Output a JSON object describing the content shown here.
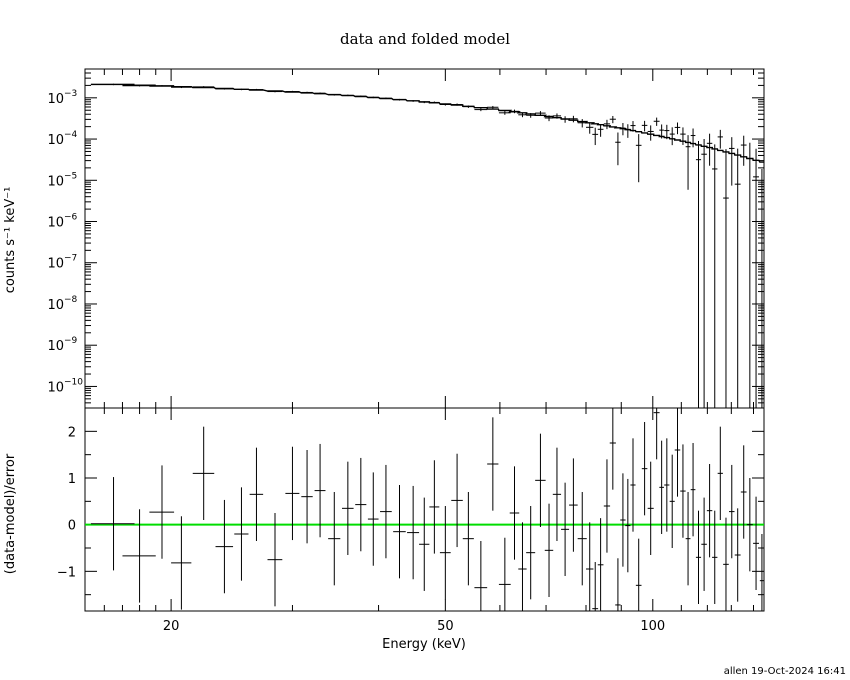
{
  "chart_data": [
    {
      "type": "line",
      "title": "data and folded model",
      "ylabel": "counts s⁻¹ keV⁻¹",
      "xlabel": "",
      "xscale": "log",
      "yscale": "log",
      "xlim": [
        15,
        145
      ],
      "ylim": [
        3e-11,
        0.005
      ],
      "yticks": [
        {
          "value": 1e-10,
          "base": "10",
          "exp": "−10"
        },
        {
          "value": 1e-09,
          "base": "10",
          "exp": "−9"
        },
        {
          "value": 1e-08,
          "base": "10",
          "exp": "−8"
        },
        {
          "value": 1e-07,
          "base": "10",
          "exp": "−7"
        },
        {
          "value": 1e-06,
          "base": "10",
          "exp": "−6"
        },
        {
          "value": 1e-05,
          "base": "10",
          "exp": "−5"
        },
        {
          "value": 0.0001,
          "base": "10",
          "exp": "−4"
        },
        {
          "value": 0.001,
          "base": "10",
          "exp": "−3"
        }
      ],
      "model_color": "#000000",
      "data_color": "#000000"
    },
    {
      "type": "scatter",
      "ylabel": "(data-model)/error",
      "xlabel": "Energy (keV)",
      "xscale": "log",
      "xlim": [
        15,
        145
      ],
      "ylim": [
        -1.85,
        2.5
      ],
      "xticks": [
        {
          "value": 20,
          "label": "20"
        },
        {
          "value": 50,
          "label": "50"
        },
        {
          "value": 100,
          "label": "100"
        }
      ],
      "yticks": [
        {
          "value": 2,
          "label": "2"
        },
        {
          "value": 1,
          "label": "1"
        },
        {
          "value": 0,
          "label": "0"
        },
        {
          "value": -1,
          "label": "−1"
        }
      ],
      "zero_line_color": "#00dd00",
      "residuals": [
        {
          "x": 16.5,
          "xerr": 1.2,
          "y": 0.02,
          "yerr": 1.0
        },
        {
          "x": 18.0,
          "xerr": 1.0,
          "y": -0.67,
          "yerr": 1.0
        },
        {
          "x": 19.4,
          "xerr": 0.8,
          "y": 0.27,
          "yerr": 1.0
        },
        {
          "x": 20.7,
          "xerr": 0.7,
          "y": -0.82,
          "yerr": 1.0
        },
        {
          "x": 22.3,
          "xerr": 0.8,
          "y": 1.1,
          "yerr": 1.0
        },
        {
          "x": 23.9,
          "xerr": 0.7,
          "y": -0.47,
          "yerr": 1.0
        },
        {
          "x": 25.3,
          "xerr": 0.6,
          "y": -0.2,
          "yerr": 1.0
        },
        {
          "x": 26.6,
          "xerr": 0.6,
          "y": 0.65,
          "yerr": 1.0
        },
        {
          "x": 28.3,
          "xerr": 0.7,
          "y": -0.75,
          "yerr": 1.0
        },
        {
          "x": 30.0,
          "xerr": 0.7,
          "y": 0.67,
          "yerr": 1.0
        },
        {
          "x": 31.5,
          "xerr": 0.6,
          "y": 0.6,
          "yerr": 1.0
        },
        {
          "x": 32.9,
          "xerr": 0.6,
          "y": 0.73,
          "yerr": 1.0
        },
        {
          "x": 34.5,
          "xerr": 0.7,
          "y": -0.3,
          "yerr": 1.0
        },
        {
          "x": 36.1,
          "xerr": 0.7,
          "y": 0.35,
          "yerr": 1.0
        },
        {
          "x": 37.7,
          "xerr": 0.7,
          "y": 0.43,
          "yerr": 1.0
        },
        {
          "x": 39.3,
          "xerr": 0.7,
          "y": 0.12,
          "yerr": 1.0
        },
        {
          "x": 41.0,
          "xerr": 0.8,
          "y": 0.28,
          "yerr": 1.0
        },
        {
          "x": 42.9,
          "xerr": 0.9,
          "y": -0.15,
          "yerr": 1.0
        },
        {
          "x": 44.9,
          "xerr": 0.9,
          "y": -0.17,
          "yerr": 1.0
        },
        {
          "x": 46.6,
          "xerr": 0.8,
          "y": -0.42,
          "yerr": 1.0
        },
        {
          "x": 48.2,
          "xerr": 0.8,
          "y": 0.38,
          "yerr": 1.0
        },
        {
          "x": 50.0,
          "xerr": 0.9,
          "y": -0.6,
          "yerr": 1.0
        },
        {
          "x": 52.0,
          "xerr": 1.0,
          "y": 0.52,
          "yerr": 1.0
        },
        {
          "x": 54.0,
          "xerr": 1.0,
          "y": -0.3,
          "yerr": 1.0
        },
        {
          "x": 56.3,
          "xerr": 1.2,
          "y": -1.35,
          "yerr": 1.0
        },
        {
          "x": 58.6,
          "xerr": 1.1,
          "y": 1.3,
          "yerr": 1.0
        },
        {
          "x": 61.0,
          "xerr": 1.2,
          "y": -1.28,
          "yerr": 1.0
        },
        {
          "x": 63.0,
          "xerr": 1.0,
          "y": 0.25,
          "yerr": 1.0
        },
        {
          "x": 64.7,
          "xerr": 0.9,
          "y": -0.95,
          "yerr": 1.0
        },
        {
          "x": 66.5,
          "xerr": 1.0,
          "y": -0.6,
          "yerr": 1.0
        },
        {
          "x": 68.7,
          "xerr": 1.2,
          "y": 0.95,
          "yerr": 1.0
        },
        {
          "x": 70.7,
          "xerr": 1.0,
          "y": -0.55,
          "yerr": 1.0
        },
        {
          "x": 72.6,
          "xerr": 1.0,
          "y": 0.65,
          "yerr": 1.0
        },
        {
          "x": 74.6,
          "xerr": 1.0,
          "y": -0.1,
          "yerr": 1.0
        },
        {
          "x": 76.7,
          "xerr": 1.1,
          "y": 0.42,
          "yerr": 1.0
        },
        {
          "x": 79.0,
          "xerr": 1.2,
          "y": -0.3,
          "yerr": 1.0
        },
        {
          "x": 81.0,
          "xerr": 1.0,
          "y": -0.95,
          "yerr": 1.0
        },
        {
          "x": 82.5,
          "xerr": 0.8,
          "y": -1.8,
          "yerr": 1.0
        },
        {
          "x": 84.0,
          "xerr": 0.8,
          "y": -0.86,
          "yerr": 1.0
        },
        {
          "x": 85.8,
          "xerr": 0.9,
          "y": 0.4,
          "yerr": 1.0
        },
        {
          "x": 87.5,
          "xerr": 0.9,
          "y": 1.75,
          "yerr": 1.0
        },
        {
          "x": 89.0,
          "xerr": 0.8,
          "y": -1.72,
          "yerr": 1.0
        },
        {
          "x": 90.5,
          "xerr": 0.8,
          "y": 0.1,
          "yerr": 1.0
        },
        {
          "x": 92.0,
          "xerr": 0.8,
          "y": -0.02,
          "yerr": 1.0
        },
        {
          "x": 93.6,
          "xerr": 0.8,
          "y": 0.85,
          "yerr": 1.0
        },
        {
          "x": 95.4,
          "xerr": 0.9,
          "y": -1.3,
          "yerr": 1.0
        },
        {
          "x": 97.3,
          "xerr": 0.9,
          "y": 1.2,
          "yerr": 1.0
        },
        {
          "x": 99.3,
          "xerr": 1.0,
          "y": 0.35,
          "yerr": 1.0
        },
        {
          "x": 101.3,
          "xerr": 1.0,
          "y": 2.4,
          "yerr": 1.0
        },
        {
          "x": 103.0,
          "xerr": 0.8,
          "y": 0.8,
          "yerr": 1.0
        },
        {
          "x": 104.8,
          "xerr": 0.9,
          "y": 0.85,
          "yerr": 1.0
        },
        {
          "x": 106.7,
          "xerr": 0.9,
          "y": 0.5,
          "yerr": 1.0
        },
        {
          "x": 108.6,
          "xerr": 1.0,
          "y": 1.6,
          "yerr": 1.0
        },
        {
          "x": 110.6,
          "xerr": 1.0,
          "y": 0.72,
          "yerr": 1.0
        },
        {
          "x": 112.5,
          "xerr": 0.9,
          "y": -0.3,
          "yerr": 1.0
        },
        {
          "x": 114.4,
          "xerr": 0.9,
          "y": 0.75,
          "yerr": 1.0
        },
        {
          "x": 116.5,
          "xerr": 1.0,
          "y": -0.7,
          "yerr": 1.0
        },
        {
          "x": 118.7,
          "xerr": 1.1,
          "y": -0.42,
          "yerr": 1.0
        },
        {
          "x": 120.9,
          "xerr": 1.1,
          "y": 0.3,
          "yerr": 1.0
        },
        {
          "x": 123.0,
          "xerr": 1.1,
          "y": -0.7,
          "yerr": 1.0
        },
        {
          "x": 125.3,
          "xerr": 1.1,
          "y": 1.1,
          "yerr": 1.0
        },
        {
          "x": 127.7,
          "xerr": 1.2,
          "y": -0.85,
          "yerr": 1.0
        },
        {
          "x": 130.2,
          "xerr": 1.2,
          "y": 0.28,
          "yerr": 1.0
        },
        {
          "x": 132.8,
          "xerr": 1.3,
          "y": -0.65,
          "yerr": 1.0
        },
        {
          "x": 135.5,
          "xerr": 1.3,
          "y": 0.7,
          "yerr": 1.0
        },
        {
          "x": 138.3,
          "xerr": 1.4,
          "y": 0.0,
          "yerr": 1.0
        },
        {
          "x": 141.2,
          "xerr": 1.4,
          "y": -0.4,
          "yerr": 1.0
        },
        {
          "x": 144.0,
          "xerr": 1.0,
          "y": -1.2,
          "yerr": 1.0
        }
      ]
    }
  ],
  "footer": "allen 19-Oct-2024 16:41"
}
